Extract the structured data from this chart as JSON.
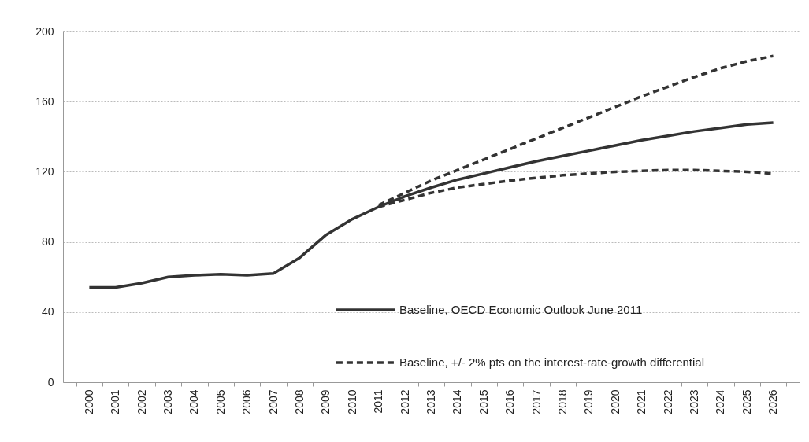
{
  "chart_data": {
    "type": "line",
    "categories": [
      "2000",
      "2001",
      "2002",
      "2003",
      "2004",
      "2005",
      "2006",
      "2007",
      "2008",
      "2009",
      "2010",
      "2011",
      "2012",
      "2013",
      "2014",
      "2015",
      "2016",
      "2017",
      "2018",
      "2019",
      "2020",
      "2021",
      "2022",
      "2023",
      "2024",
      "2025",
      "2026"
    ],
    "ylim": [
      0,
      200
    ],
    "yticks": [
      0,
      40,
      80,
      120,
      160,
      200
    ],
    "grid": "y",
    "legend": "bottom right",
    "series": [
      {
        "name": "Baseline, OECD Economic Outlook June 2011",
        "color": "#333333",
        "line_style": "solid",
        "values": [
          54,
          54,
          56.5,
          60,
          61,
          61.5,
          61,
          62,
          71,
          84,
          93,
          100,
          106,
          111,
          115.5,
          119,
          122.5,
          126,
          129,
          132,
          135,
          138,
          140.5,
          143,
          145,
          147,
          148
        ]
      },
      {
        "name": "Baseline, +/- 2% pts on the interest-rate-growth differential",
        "color": "#333333",
        "line_style": "dashed",
        "values": [
          null,
          null,
          null,
          null,
          null,
          null,
          null,
          null,
          null,
          null,
          null,
          101,
          108,
          115,
          121,
          127,
          133,
          139,
          145,
          151,
          157,
          163,
          168.5,
          174,
          179,
          183,
          186
        ]
      },
      {
        "color": "#333333",
        "line_style": "dashed",
        "values": [
          null,
          null,
          null,
          null,
          null,
          null,
          null,
          null,
          null,
          null,
          null,
          100,
          104,
          108,
          111,
          113,
          115,
          116.5,
          118,
          119,
          120,
          120.5,
          121,
          121,
          120.5,
          120,
          119
        ]
      }
    ]
  }
}
